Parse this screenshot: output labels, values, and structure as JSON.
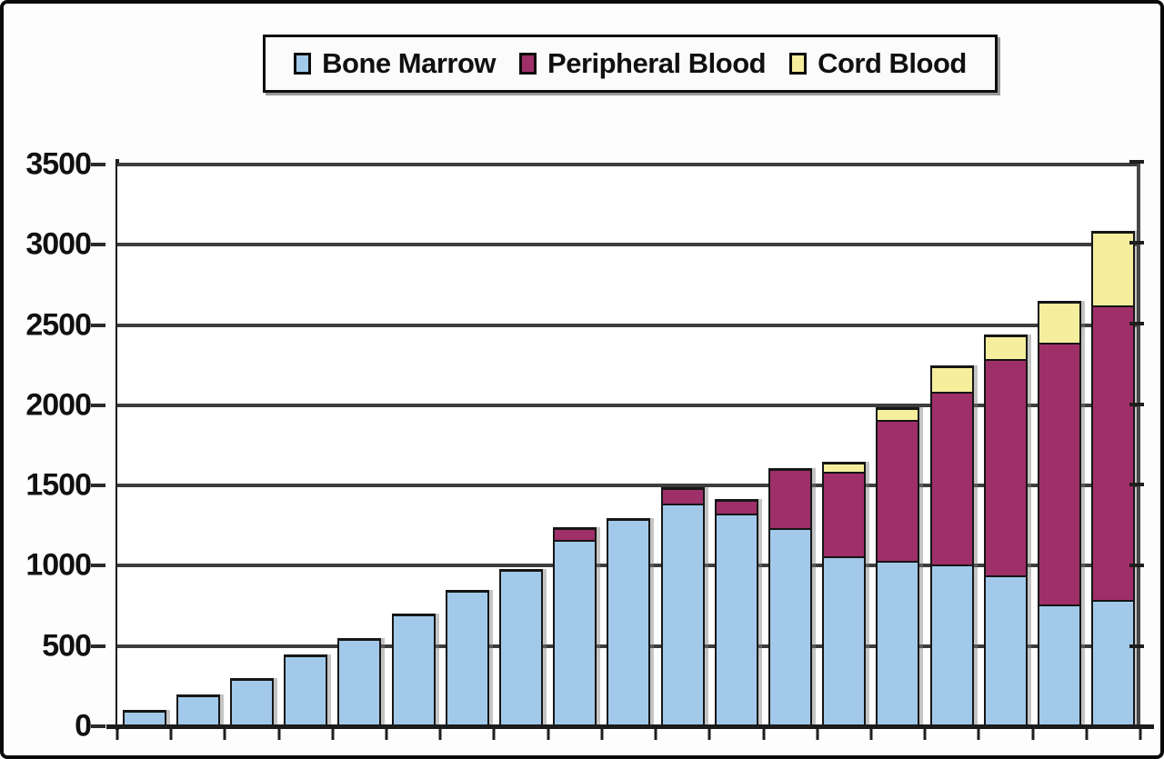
{
  "window": {
    "background": "#ffffff",
    "frame_border_color": "#0a0a0a"
  },
  "legend": {
    "position": "top-center",
    "items": [
      {
        "label": "Bone Marrow",
        "color": "#A2C9E9"
      },
      {
        "label": "Peripheral Blood",
        "color": "#9F2F68"
      },
      {
        "label": "Cord Blood",
        "color": "#F4EE9D"
      }
    ]
  },
  "chart_data": {
    "type": "bar",
    "stacked": true,
    "title": "",
    "xlabel": "",
    "ylabel": "",
    "ylim": [
      0,
      3500
    ],
    "ytick_step": 500,
    "ytick_labels": [
      "0",
      "500",
      "1000",
      "1500",
      "2000",
      "2500",
      "3000",
      "3500"
    ],
    "grid": true,
    "gridline_color": "#3d3d3d",
    "legend_position": "top",
    "x_axis_labels_visible": false,
    "num_bars": 19,
    "categories": [
      "1",
      "2",
      "3",
      "4",
      "5",
      "6",
      "7",
      "8",
      "9",
      "10",
      "11",
      "12",
      "13",
      "14",
      "15",
      "16",
      "17",
      "18",
      "19"
    ],
    "series": [
      {
        "name": "Bone Marrow",
        "color": "#A2C9E9",
        "values": [
          100,
          200,
          300,
          450,
          550,
          700,
          850,
          980,
          1175,
          1295,
          1405,
          1340,
          1240,
          1070,
          1035,
          1010,
          940,
          750,
          775
        ]
      },
      {
        "name": "Peripheral Blood",
        "color": "#9F2F68",
        "values": [
          0,
          0,
          0,
          0,
          0,
          0,
          0,
          0,
          65,
          0,
          85,
          75,
          370,
          530,
          890,
          1090,
          1360,
          1655,
          1855
        ]
      },
      {
        "name": "Cord Blood",
        "color": "#F4EE9D",
        "values": [
          0,
          0,
          0,
          0,
          0,
          0,
          0,
          0,
          0,
          0,
          0,
          0,
          0,
          50,
          65,
          150,
          140,
          245,
          455
        ]
      }
    ],
    "stack_totals": [
      100,
      200,
      300,
      450,
      550,
      700,
      850,
      980,
      1240,
      1295,
      1490,
      1415,
      1610,
      1650,
      1990,
      2250,
      2440,
      2650,
      3085
    ]
  }
}
